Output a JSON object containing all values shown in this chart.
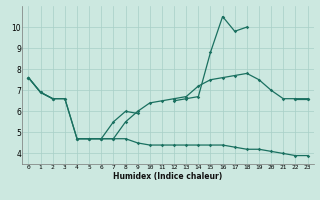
{
  "xlabel": "Humidex (Indice chaleur)",
  "x": [
    0,
    1,
    2,
    3,
    4,
    5,
    6,
    7,
    8,
    9,
    10,
    11,
    12,
    13,
    14,
    15,
    16,
    17,
    18,
    19,
    20,
    21,
    22,
    23
  ],
  "line1_segments": [
    {
      "x": [
        0,
        1,
        2
      ],
      "y": [
        7.6,
        6.9,
        6.6
      ]
    },
    {
      "x": [
        4,
        5,
        6,
        7,
        8,
        9
      ],
      "y": [
        4.7,
        4.7,
        4.7,
        5.5,
        6.0,
        5.9
      ]
    },
    {
      "x": [
        12,
        13,
        14,
        15,
        16,
        17,
        18
      ],
      "y": [
        6.5,
        6.6,
        6.7,
        8.8,
        10.5,
        9.8,
        10.0
      ]
    },
    {
      "x": [
        22,
        23
      ],
      "y": [
        6.6,
        6.6
      ]
    }
  ],
  "line2": [
    7.6,
    6.9,
    6.6,
    6.6,
    4.7,
    4.7,
    4.7,
    4.7,
    5.5,
    6.0,
    6.4,
    6.5,
    6.6,
    6.7,
    7.2,
    7.5,
    7.6,
    7.7,
    7.8,
    7.5,
    7.0,
    6.6,
    6.6,
    6.6
  ],
  "line3": [
    7.6,
    6.9,
    6.6,
    6.6,
    4.7,
    4.7,
    4.7,
    4.7,
    4.7,
    4.5,
    4.4,
    4.4,
    4.4,
    4.4,
    4.4,
    4.4,
    4.4,
    4.3,
    4.2,
    4.2,
    4.1,
    4.0,
    3.9,
    3.9
  ],
  "bg_color": "#cce8e0",
  "grid_color": "#a8cfc7",
  "line_color": "#1a7060",
  "ylim": [
    3.5,
    11.0
  ],
  "xlim": [
    -0.5,
    23.5
  ],
  "yticks": [
    4,
    5,
    6,
    7,
    8,
    9,
    10
  ],
  "xticks": [
    0,
    1,
    2,
    3,
    4,
    5,
    6,
    7,
    8,
    9,
    10,
    11,
    12,
    13,
    14,
    15,
    16,
    17,
    18,
    19,
    20,
    21,
    22,
    23
  ]
}
